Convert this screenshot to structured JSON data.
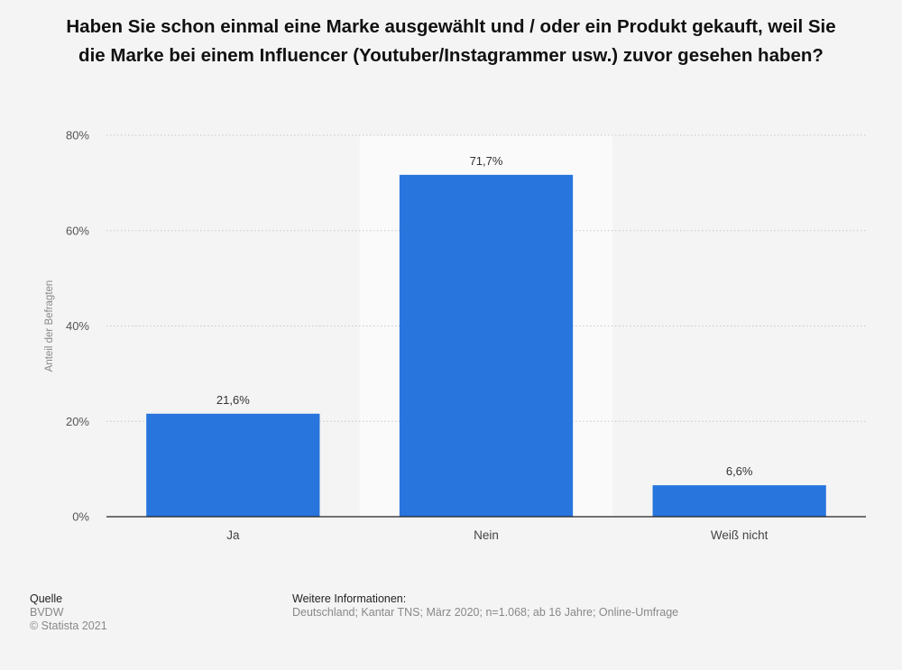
{
  "title": "Haben Sie schon einmal eine Marke ausgewählt und / oder ein Produkt gekauft, weil Sie die Marke bei einem Influencer (Youtuber/Instagrammer usw.) zuvor gesehen haben?",
  "chart_data": {
    "type": "bar",
    "categories": [
      "Ja",
      "Nein",
      "Weiß nicht"
    ],
    "values": [
      21.6,
      71.7,
      6.6
    ],
    "value_labels": [
      "21,6%",
      "71,7%",
      "6,6%"
    ],
    "ylabel": "Anteil der Befragten",
    "ylim": [
      0,
      80
    ],
    "yticks": [
      0,
      20,
      40,
      60,
      80
    ],
    "ytick_labels": [
      "0%",
      "20%",
      "40%",
      "60%",
      "80%"
    ],
    "grid": true,
    "highlighted_category": "Nein",
    "bar_color": "#2875dd",
    "highlight_band_color": "#fafafa"
  },
  "footer": {
    "source_heading": "Quelle",
    "source": "BVDW",
    "copyright": "© Statista 2021",
    "info_heading": "Weitere Informationen:",
    "info": "Deutschland; Kantar TNS; März 2020; n=1.068; ab 16 Jahre; Online-Umfrage"
  }
}
